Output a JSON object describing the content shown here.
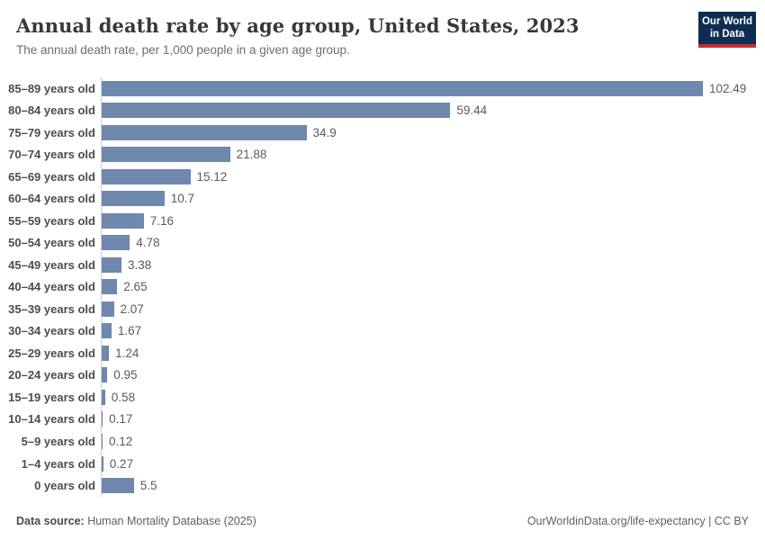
{
  "header": {
    "title": "Annual death rate by age group, United States, 2023",
    "subtitle": "The annual death rate, per 1,000 people in a given age group.",
    "logo": {
      "line1": "Our World",
      "line2": "in Data"
    }
  },
  "chart_data": {
    "type": "bar",
    "orientation": "horizontal",
    "title": "Annual death rate by age group, United States, 2023",
    "xlabel": "",
    "ylabel": "",
    "xlim": [
      0,
      102.49
    ],
    "grid": false,
    "legend": false,
    "categories": [
      "85–89 years old",
      "80–84 years old",
      "75–79 years old",
      "70–74 years old",
      "65–69 years old",
      "60–64 years old",
      "55–59 years old",
      "50–54 years old",
      "45–49 years old",
      "40–44 years old",
      "35–39 years old",
      "30–34 years old",
      "25–29 years old",
      "20–24 years old",
      "15–19 years old",
      "10–14 years old",
      "5–9 years old",
      "1–4 years old",
      "0 years old"
    ],
    "values": [
      102.49,
      59.44,
      34.9,
      21.88,
      15.12,
      10.7,
      7.16,
      4.78,
      3.38,
      2.65,
      2.07,
      1.67,
      1.24,
      0.95,
      0.58,
      0.17,
      0.12,
      0.27,
      5.5
    ],
    "value_labels": [
      "102.49",
      "59.44",
      "34.9",
      "21.88",
      "15.12",
      "10.7",
      "7.16",
      "4.78",
      "3.38",
      "2.65",
      "2.07",
      "1.67",
      "1.24",
      "0.95",
      "0.58",
      "0.17",
      "0.12",
      "0.27",
      "5.5"
    ]
  },
  "footer": {
    "source_label": "Data source:",
    "source_text": " Human Mortality Database (2025)",
    "right_text": "OurWorldinData.org/life-expectancy | CC BY"
  },
  "colors": {
    "bar": "#6f88ae",
    "logo_navy": "#0f2d52",
    "logo_red": "#c52f30",
    "axis_line": "#cfcfcf"
  }
}
